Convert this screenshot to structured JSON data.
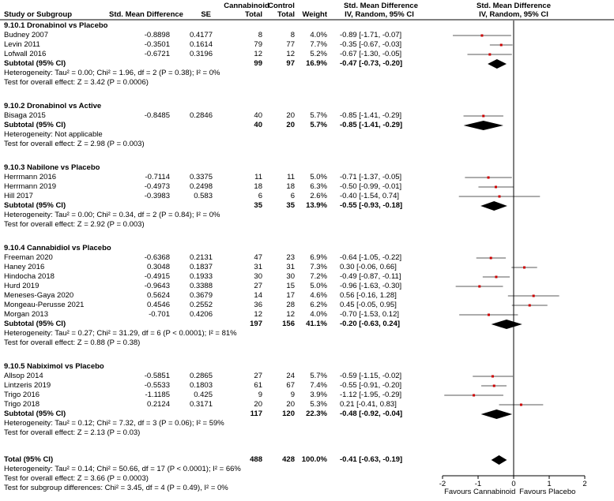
{
  "headers": {
    "study": "Study or Subgroup",
    "smd": "Std. Mean Difference",
    "se": "SE",
    "group1": "Cannabinoid",
    "group2": "Control",
    "total1": "Total",
    "total2": "Total",
    "weight": "Weight",
    "ci_title": "Std. Mean Difference",
    "ci_sub": "IV, Random, 95% CI",
    "plot_title": "Std. Mean Difference",
    "plot_sub": "IV, Random, 95% CI"
  },
  "subgroups": [
    {
      "title": "9.10.1 Dronabinol vs Placebo",
      "studies": [
        {
          "name": "Budney 2007",
          "smd": "-0.8898",
          "se": "0.4177",
          "n1": "8",
          "n2": "8",
          "weight": "4.0%",
          "ci": "-0.89 [-1.71, -0.07]",
          "est": -0.89,
          "lo": -1.71,
          "hi": -0.07
        },
        {
          "name": "Levin 2011",
          "smd": "-0.3501",
          "se": "0.1614",
          "n1": "79",
          "n2": "77",
          "weight": "7.7%",
          "ci": "-0.35 [-0.67, -0.03]",
          "est": -0.35,
          "lo": -0.67,
          "hi": -0.03
        },
        {
          "name": "Lofwall 2016",
          "smd": "-0.6721",
          "se": "0.3196",
          "n1": "12",
          "n2": "12",
          "weight": "5.2%",
          "ci": "-0.67 [-1.30, -0.05]",
          "est": -0.67,
          "lo": -1.3,
          "hi": -0.05
        }
      ],
      "subtotal": {
        "label": "Subtotal (95% CI)",
        "n1": "99",
        "n2": "97",
        "weight": "16.9%",
        "ci": "-0.47 [-0.73, -0.20]",
        "est": -0.47,
        "lo": -0.73,
        "hi": -0.2
      },
      "heterogeneity": "Heterogeneity: Tau² = 0.00; Chi² = 1.96, df = 2 (P = 0.38); I² = 0%",
      "overall": "Test for overall effect: Z = 3.42 (P = 0.0006)"
    },
    {
      "title": "9.10.2 Dronabinol vs Active",
      "studies": [
        {
          "name": "Bisaga 2015",
          "smd": "-0.8485",
          "se": "0.2846",
          "n1": "40",
          "n2": "20",
          "weight": "5.7%",
          "ci": "-0.85 [-1.41, -0.29]",
          "est": -0.85,
          "lo": -1.41,
          "hi": -0.29
        }
      ],
      "subtotal": {
        "label": "Subtotal (95% CI)",
        "n1": "40",
        "n2": "20",
        "weight": "5.7%",
        "ci": "-0.85 [-1.41, -0.29]",
        "est": -0.85,
        "lo": -1.41,
        "hi": -0.29
      },
      "heterogeneity": "Heterogeneity: Not applicable",
      "overall": "Test for overall effect: Z = 2.98 (P = 0.003)"
    },
    {
      "title": "9.10.3 Nabilone vs Placebo",
      "studies": [
        {
          "name": "Herrmann 2016",
          "smd": "-0.7114",
          "se": "0.3375",
          "n1": "11",
          "n2": "11",
          "weight": "5.0%",
          "ci": "-0.71 [-1.37, -0.05]",
          "est": -0.71,
          "lo": -1.37,
          "hi": -0.05
        },
        {
          "name": "Herrmann 2019",
          "smd": "-0.4973",
          "se": "0.2498",
          "n1": "18",
          "n2": "18",
          "weight": "6.3%",
          "ci": "-0.50 [-0.99, -0.01]",
          "est": -0.5,
          "lo": -0.99,
          "hi": -0.01
        },
        {
          "name": "Hill 2017",
          "smd": "-0.3983",
          "se": "0.583",
          "n1": "6",
          "n2": "6",
          "weight": "2.6%",
          "ci": "-0.40 [-1.54, 0.74]",
          "est": -0.4,
          "lo": -1.54,
          "hi": 0.74
        }
      ],
      "subtotal": {
        "label": "Subtotal (95% CI)",
        "n1": "35",
        "n2": "35",
        "weight": "13.9%",
        "ci": "-0.55 [-0.93, -0.18]",
        "est": -0.55,
        "lo": -0.93,
        "hi": -0.18
      },
      "heterogeneity": "Heterogeneity: Tau² = 0.00; Chi² = 0.34, df = 2 (P = 0.84); I² = 0%",
      "overall": "Test for overall effect: Z = 2.92 (P = 0.003)"
    },
    {
      "title": "9.10.4 Cannabidiol vs Placebo",
      "studies": [
        {
          "name": "Freeman 2020",
          "smd": "-0.6368",
          "se": "0.2131",
          "n1": "47",
          "n2": "23",
          "weight": "6.9%",
          "ci": "-0.64 [-1.05, -0.22]",
          "est": -0.64,
          "lo": -1.05,
          "hi": -0.22
        },
        {
          "name": "Haney 2016",
          "smd": "0.3048",
          "se": "0.1837",
          "n1": "31",
          "n2": "31",
          "weight": "7.3%",
          "ci": "0.30 [-0.06, 0.66]",
          "est": 0.3,
          "lo": -0.06,
          "hi": 0.66
        },
        {
          "name": "Hindocha 2018",
          "smd": "-0.4915",
          "se": "0.1933",
          "n1": "30",
          "n2": "30",
          "weight": "7.2%",
          "ci": "-0.49 [-0.87, -0.11]",
          "est": -0.49,
          "lo": -0.87,
          "hi": -0.11
        },
        {
          "name": "Hurd 2019",
          "smd": "-0.9643",
          "se": "0.3388",
          "n1": "27",
          "n2": "15",
          "weight": "5.0%",
          "ci": "-0.96 [-1.63, -0.30]",
          "est": -0.96,
          "lo": -1.63,
          "hi": -0.3
        },
        {
          "name": "Meneses-Gaya 2020",
          "smd": "0.5624",
          "se": "0.3679",
          "n1": "14",
          "n2": "17",
          "weight": "4.6%",
          "ci": "0.56 [-0.16, 1.28]",
          "est": 0.56,
          "lo": -0.16,
          "hi": 1.28
        },
        {
          "name": "Mongeau-Perusse 2021",
          "smd": "0.4546",
          "se": "0.2552",
          "n1": "36",
          "n2": "28",
          "weight": "6.2%",
          "ci": "0.45 [-0.05, 0.95]",
          "est": 0.45,
          "lo": -0.05,
          "hi": 0.95
        },
        {
          "name": "Morgan 2013",
          "smd": "-0.701",
          "se": "0.4206",
          "n1": "12",
          "n2": "12",
          "weight": "4.0%",
          "ci": "-0.70 [-1.53, 0.12]",
          "est": -0.7,
          "lo": -1.53,
          "hi": 0.12
        }
      ],
      "subtotal": {
        "label": "Subtotal (95% CI)",
        "n1": "197",
        "n2": "156",
        "weight": "41.1%",
        "ci": "-0.20 [-0.63, 0.24]",
        "est": -0.2,
        "lo": -0.63,
        "hi": 0.24
      },
      "heterogeneity": "Heterogeneity: Tau² = 0.27; Chi² = 31.29, df = 6 (P < 0.0001); I² = 81%",
      "overall": "Test for overall effect: Z = 0.88 (P = 0.38)"
    },
    {
      "title": "9.10.5 Nabiximol vs Placebo",
      "studies": [
        {
          "name": "Allsop 2014",
          "smd": "-0.5851",
          "se": "0.2865",
          "n1": "27",
          "n2": "24",
          "weight": "5.7%",
          "ci": "-0.59 [-1.15, -0.02]",
          "est": -0.59,
          "lo": -1.15,
          "hi": -0.02
        },
        {
          "name": "Lintzeris 2019",
          "smd": "-0.5533",
          "se": "0.1803",
          "n1": "61",
          "n2": "67",
          "weight": "7.4%",
          "ci": "-0.55 [-0.91, -0.20]",
          "est": -0.55,
          "lo": -0.91,
          "hi": -0.2
        },
        {
          "name": "Trigo 2016",
          "smd": "-1.1185",
          "se": "0.425",
          "n1": "9",
          "n2": "9",
          "weight": "3.9%",
          "ci": "-1.12 [-1.95, -0.29]",
          "est": -1.12,
          "lo": -1.95,
          "hi": -0.29
        },
        {
          "name": "Trigo 2018",
          "smd": "0.2124",
          "se": "0.3171",
          "n1": "20",
          "n2": "20",
          "weight": "5.3%",
          "ci": "0.21 [-0.41, 0.83]",
          "est": 0.21,
          "lo": -0.41,
          "hi": 0.83
        }
      ],
      "subtotal": {
        "label": "Subtotal (95% CI)",
        "n1": "117",
        "n2": "120",
        "weight": "22.3%",
        "ci": "-0.48 [-0.92, -0.04]",
        "est": -0.48,
        "lo": -0.92,
        "hi": -0.04
      },
      "heterogeneity": "Heterogeneity: Tau² = 0.12; Chi² = 7.32, df = 3 (P = 0.06); I² = 59%",
      "overall": "Test for overall effect: Z = 2.13 (P = 0.03)"
    }
  ],
  "total": {
    "label": "Total (95% CI)",
    "n1": "488",
    "n2": "428",
    "weight": "100.0%",
    "ci": "-0.41 [-0.63, -0.19]",
    "est": -0.41,
    "lo": -0.63,
    "hi": -0.19,
    "heterogeneity": "Heterogeneity: Tau² = 0.14; Chi² = 50.66, df = 17 (P < 0.0001); I² = 66%",
    "overall": "Test for overall effect: Z = 3.66 (P = 0.0003)",
    "subgroup_diff": "Test for subgroup differences: Chi² = 3.45, df = 4 (P = 0.49), I² = 0%"
  },
  "chart_data": {
    "type": "forest",
    "xlim": [
      -2,
      2
    ],
    "xticks": [
      "-2",
      "-1",
      "0",
      "1",
      "2"
    ],
    "favours_left": "Favours Cannabinoid",
    "favours_right": "Favours Placebo",
    "colors": {
      "point": "#cc0000",
      "line": "#000000",
      "diamond": "#000000"
    }
  }
}
